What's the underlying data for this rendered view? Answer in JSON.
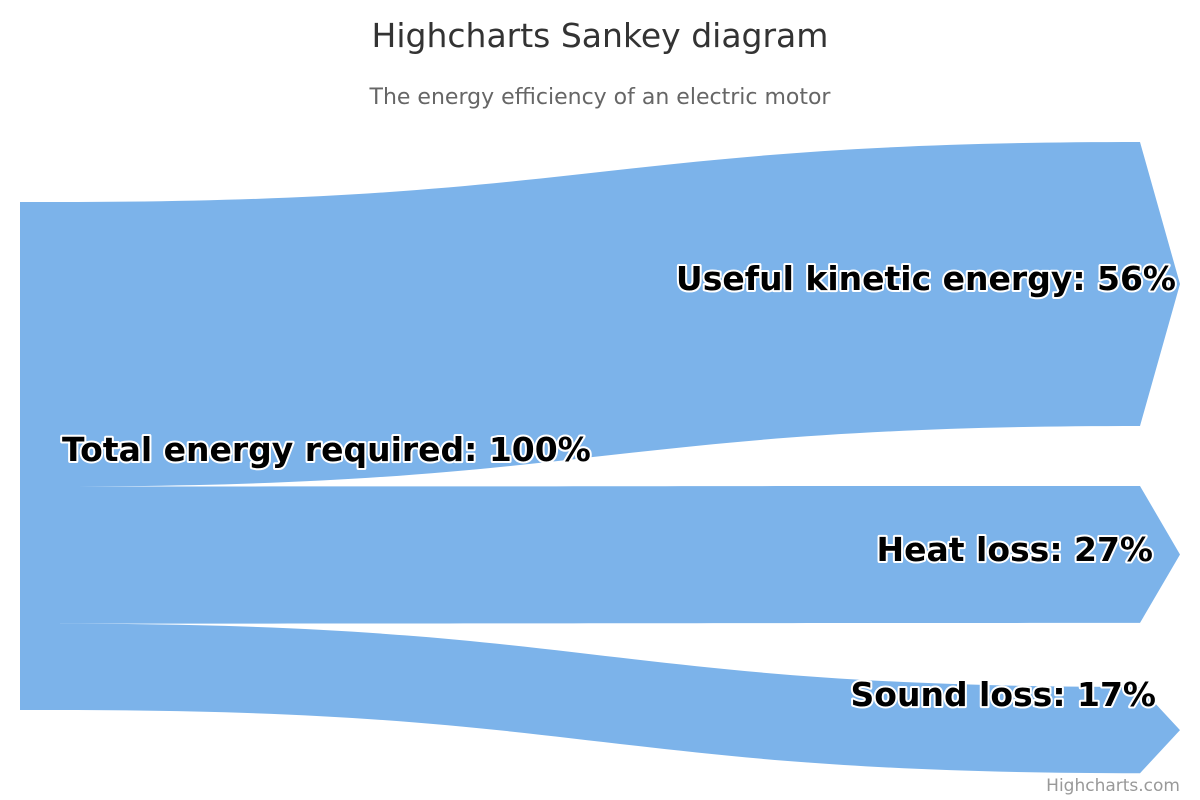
{
  "title": "Highcharts Sankey diagram",
  "subtitle": "The energy efficiency of an electric motor",
  "credits": "Highcharts.com",
  "color": "#7cb3ea",
  "chart_data": {
    "type": "sankey",
    "title": "Highcharts Sankey diagram",
    "subtitle": "The energy efficiency of an electric motor",
    "nodes": [
      {
        "id": "total",
        "label": "Total energy required: 100%",
        "value": 100
      },
      {
        "id": "kinetic",
        "label": "Useful kinetic energy: 56%",
        "value": 56
      },
      {
        "id": "heat",
        "label": "Heat loss: 27%",
        "value": 27
      },
      {
        "id": "sound",
        "label": "Sound loss: 17%",
        "value": 17
      }
    ],
    "links": [
      {
        "from": "total",
        "to": "kinetic",
        "weight": 56
      },
      {
        "from": "total",
        "to": "heat",
        "weight": 27
      },
      {
        "from": "total",
        "to": "sound",
        "weight": 17
      }
    ]
  }
}
